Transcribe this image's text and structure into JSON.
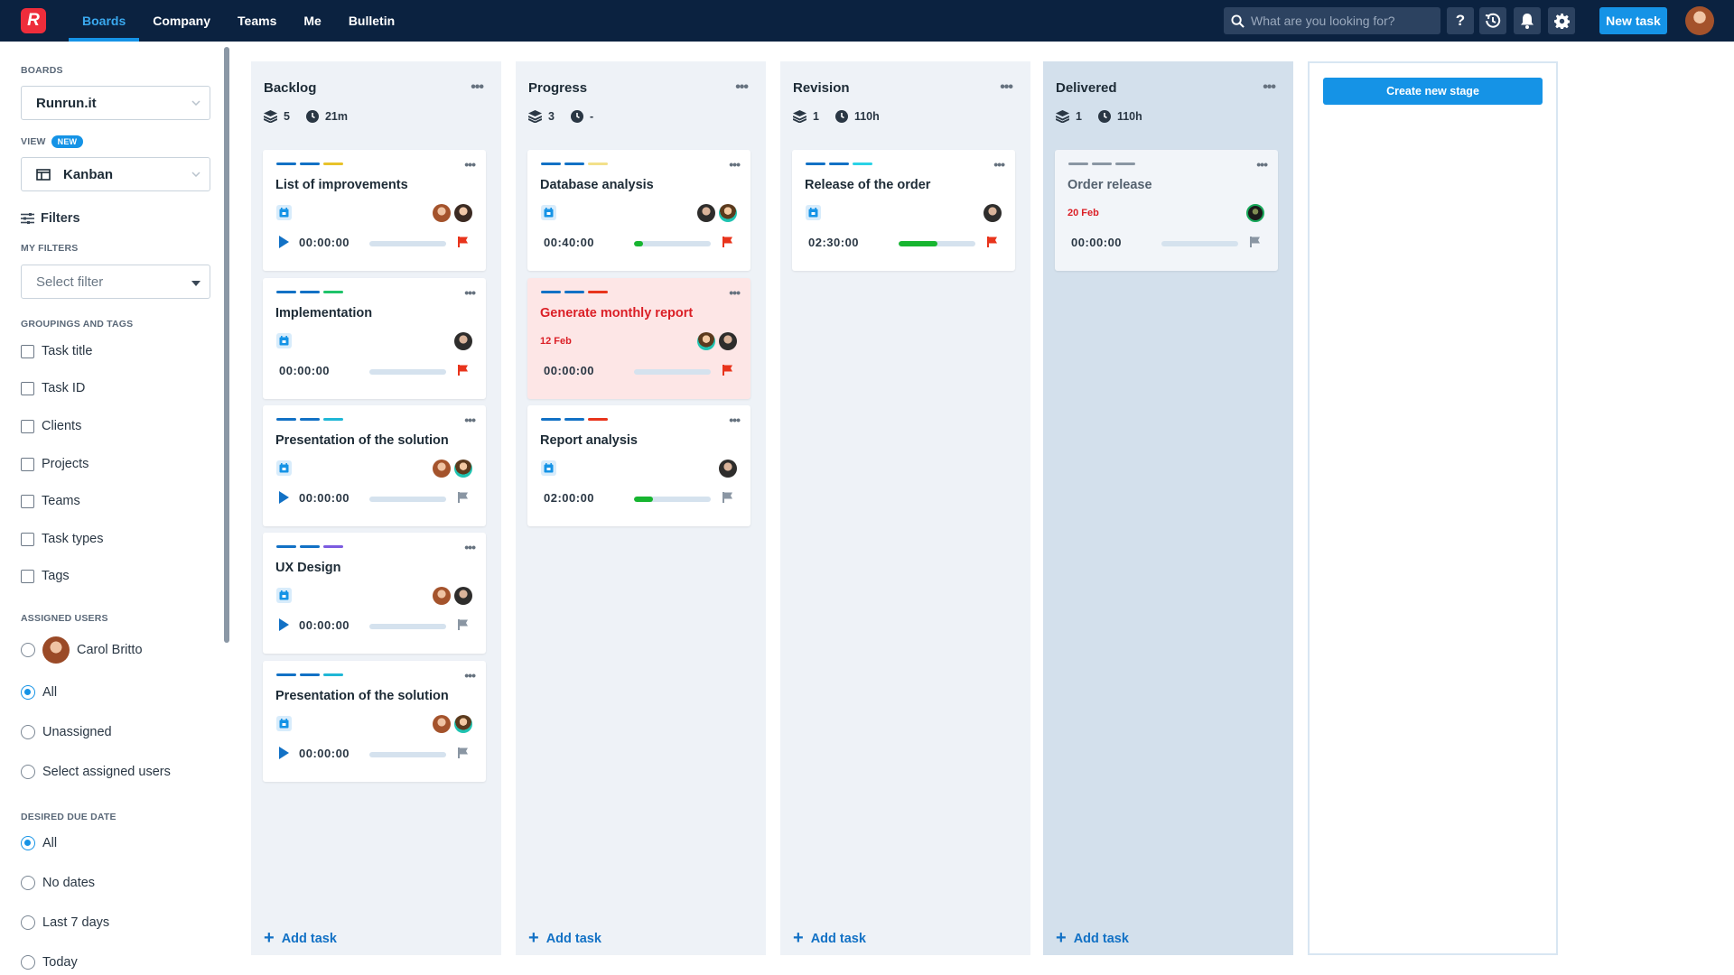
{
  "nav": {
    "logo": "R",
    "items": [
      "Boards",
      "Company",
      "Teams",
      "Me",
      "Bulletin"
    ],
    "search_placeholder": "What are you looking for?",
    "new_task": "New task"
  },
  "sidebar": {
    "boards_label": "BOARDS",
    "board_value": "Runrun.it",
    "view_label": "VIEW",
    "view_badge": "NEW",
    "view_value": "Kanban",
    "filters_label": "Filters",
    "my_filters_label": "MY FILTERS",
    "filter_placeholder": "Select filter",
    "groupings_label": "GROUPINGS AND TAGS",
    "groupings": [
      "Task title",
      "Task ID",
      "Clients",
      "Projects",
      "Teams",
      "Task types",
      "Tags"
    ],
    "assigned_label": "ASSIGNED USERS",
    "assigned_user": "Carol Britto",
    "assigned_options": [
      "All",
      "Unassigned",
      "Select assigned users"
    ],
    "due_label": "DESIRED DUE DATE",
    "due_options": [
      "All",
      "No dates",
      "Last 7 days",
      "Today"
    ]
  },
  "columns": [
    {
      "title": "Backlog",
      "count": "5",
      "time": "21m",
      "cards": [
        {
          "title": "List of improvements",
          "timer": "00:00:00",
          "playing": true,
          "tags": [
            "#1271c5",
            "#1271c5",
            "#e8c22a"
          ],
          "avatars": [
            "a1",
            "a2"
          ],
          "flag": "#e8341c",
          "progress": 0
        },
        {
          "title": "Implementation",
          "timer": "00:00:00",
          "playing": false,
          "tags": [
            "#1271c5",
            "#1271c5",
            "#1fc36a"
          ],
          "avatars": [
            "a4"
          ],
          "flag": "#e8341c",
          "progress": 0
        },
        {
          "title": "Presentation of the solution",
          "timer": "00:00:00",
          "playing": true,
          "tags": [
            "#1271c5",
            "#1271c5",
            "#1fb7d6"
          ],
          "avatars": [
            "a1",
            "a3"
          ],
          "flag": "#8a96a3",
          "progress": 0
        },
        {
          "title": "UX Design",
          "timer": "00:00:00",
          "playing": true,
          "tags": [
            "#1271c5",
            "#1271c5",
            "#7b5be0"
          ],
          "avatars": [
            "a1",
            "a4"
          ],
          "flag": "#8a96a3",
          "progress": 0
        },
        {
          "title": "Presentation of the solution",
          "timer": "00:00:00",
          "playing": true,
          "tags": [
            "#1271c5",
            "#1271c5",
            "#1fb7d6"
          ],
          "avatars": [
            "a1",
            "a3"
          ],
          "flag": "#8a96a3",
          "progress": 0
        }
      ]
    },
    {
      "title": "Progress",
      "count": "3",
      "time": "-",
      "cards": [
        {
          "title": "Database analysis",
          "timer": "00:40:00",
          "playing": false,
          "tags": [
            "#1271c5",
            "#1271c5",
            "#f3e08a"
          ],
          "avatars": [
            "a4",
            "a3"
          ],
          "flag": "#e8341c",
          "progress": 0.12
        },
        {
          "title": "Generate monthly report",
          "date": "12 Feb",
          "timer": "00:00:00",
          "playing": false,
          "alert": true,
          "tags": [
            "#1271c5",
            "#1271c5",
            "#e8341c"
          ],
          "avatars": [
            "a3",
            "a4"
          ],
          "flag": "#e8341c",
          "progress": 0
        },
        {
          "title": "Report analysis",
          "timer": "02:00:00",
          "playing": false,
          "tags": [
            "#1271c5",
            "#1271c5",
            "#e8341c"
          ],
          "avatars": [
            "a4"
          ],
          "flag": "#8a96a3",
          "progress": 0.25
        }
      ]
    },
    {
      "title": "Revision",
      "count": "1",
      "time": "110h",
      "cards": [
        {
          "title": "Release of the order",
          "timer": "02:30:00",
          "playing": false,
          "tags": [
            "#1271c5",
            "#1271c5",
            "#2ad2e6"
          ],
          "avatars": [
            "a4"
          ],
          "flag": "#e8341c",
          "progress": 0.5
        }
      ]
    },
    {
      "title": "Delivered",
      "count": "1",
      "time": "110h",
      "delivered": true,
      "cards": [
        {
          "title": "Order release",
          "date": "20 Feb",
          "timer": "00:00:00",
          "playing": false,
          "muted": true,
          "tags": [
            "#8a96a3",
            "#8a96a3",
            "#8a96a3"
          ],
          "avatars": [
            "a5"
          ],
          "flag": "#8a96a3",
          "progress": 0
        }
      ]
    }
  ],
  "add_task_label": "Add task",
  "create_stage_label": "Create new stage"
}
